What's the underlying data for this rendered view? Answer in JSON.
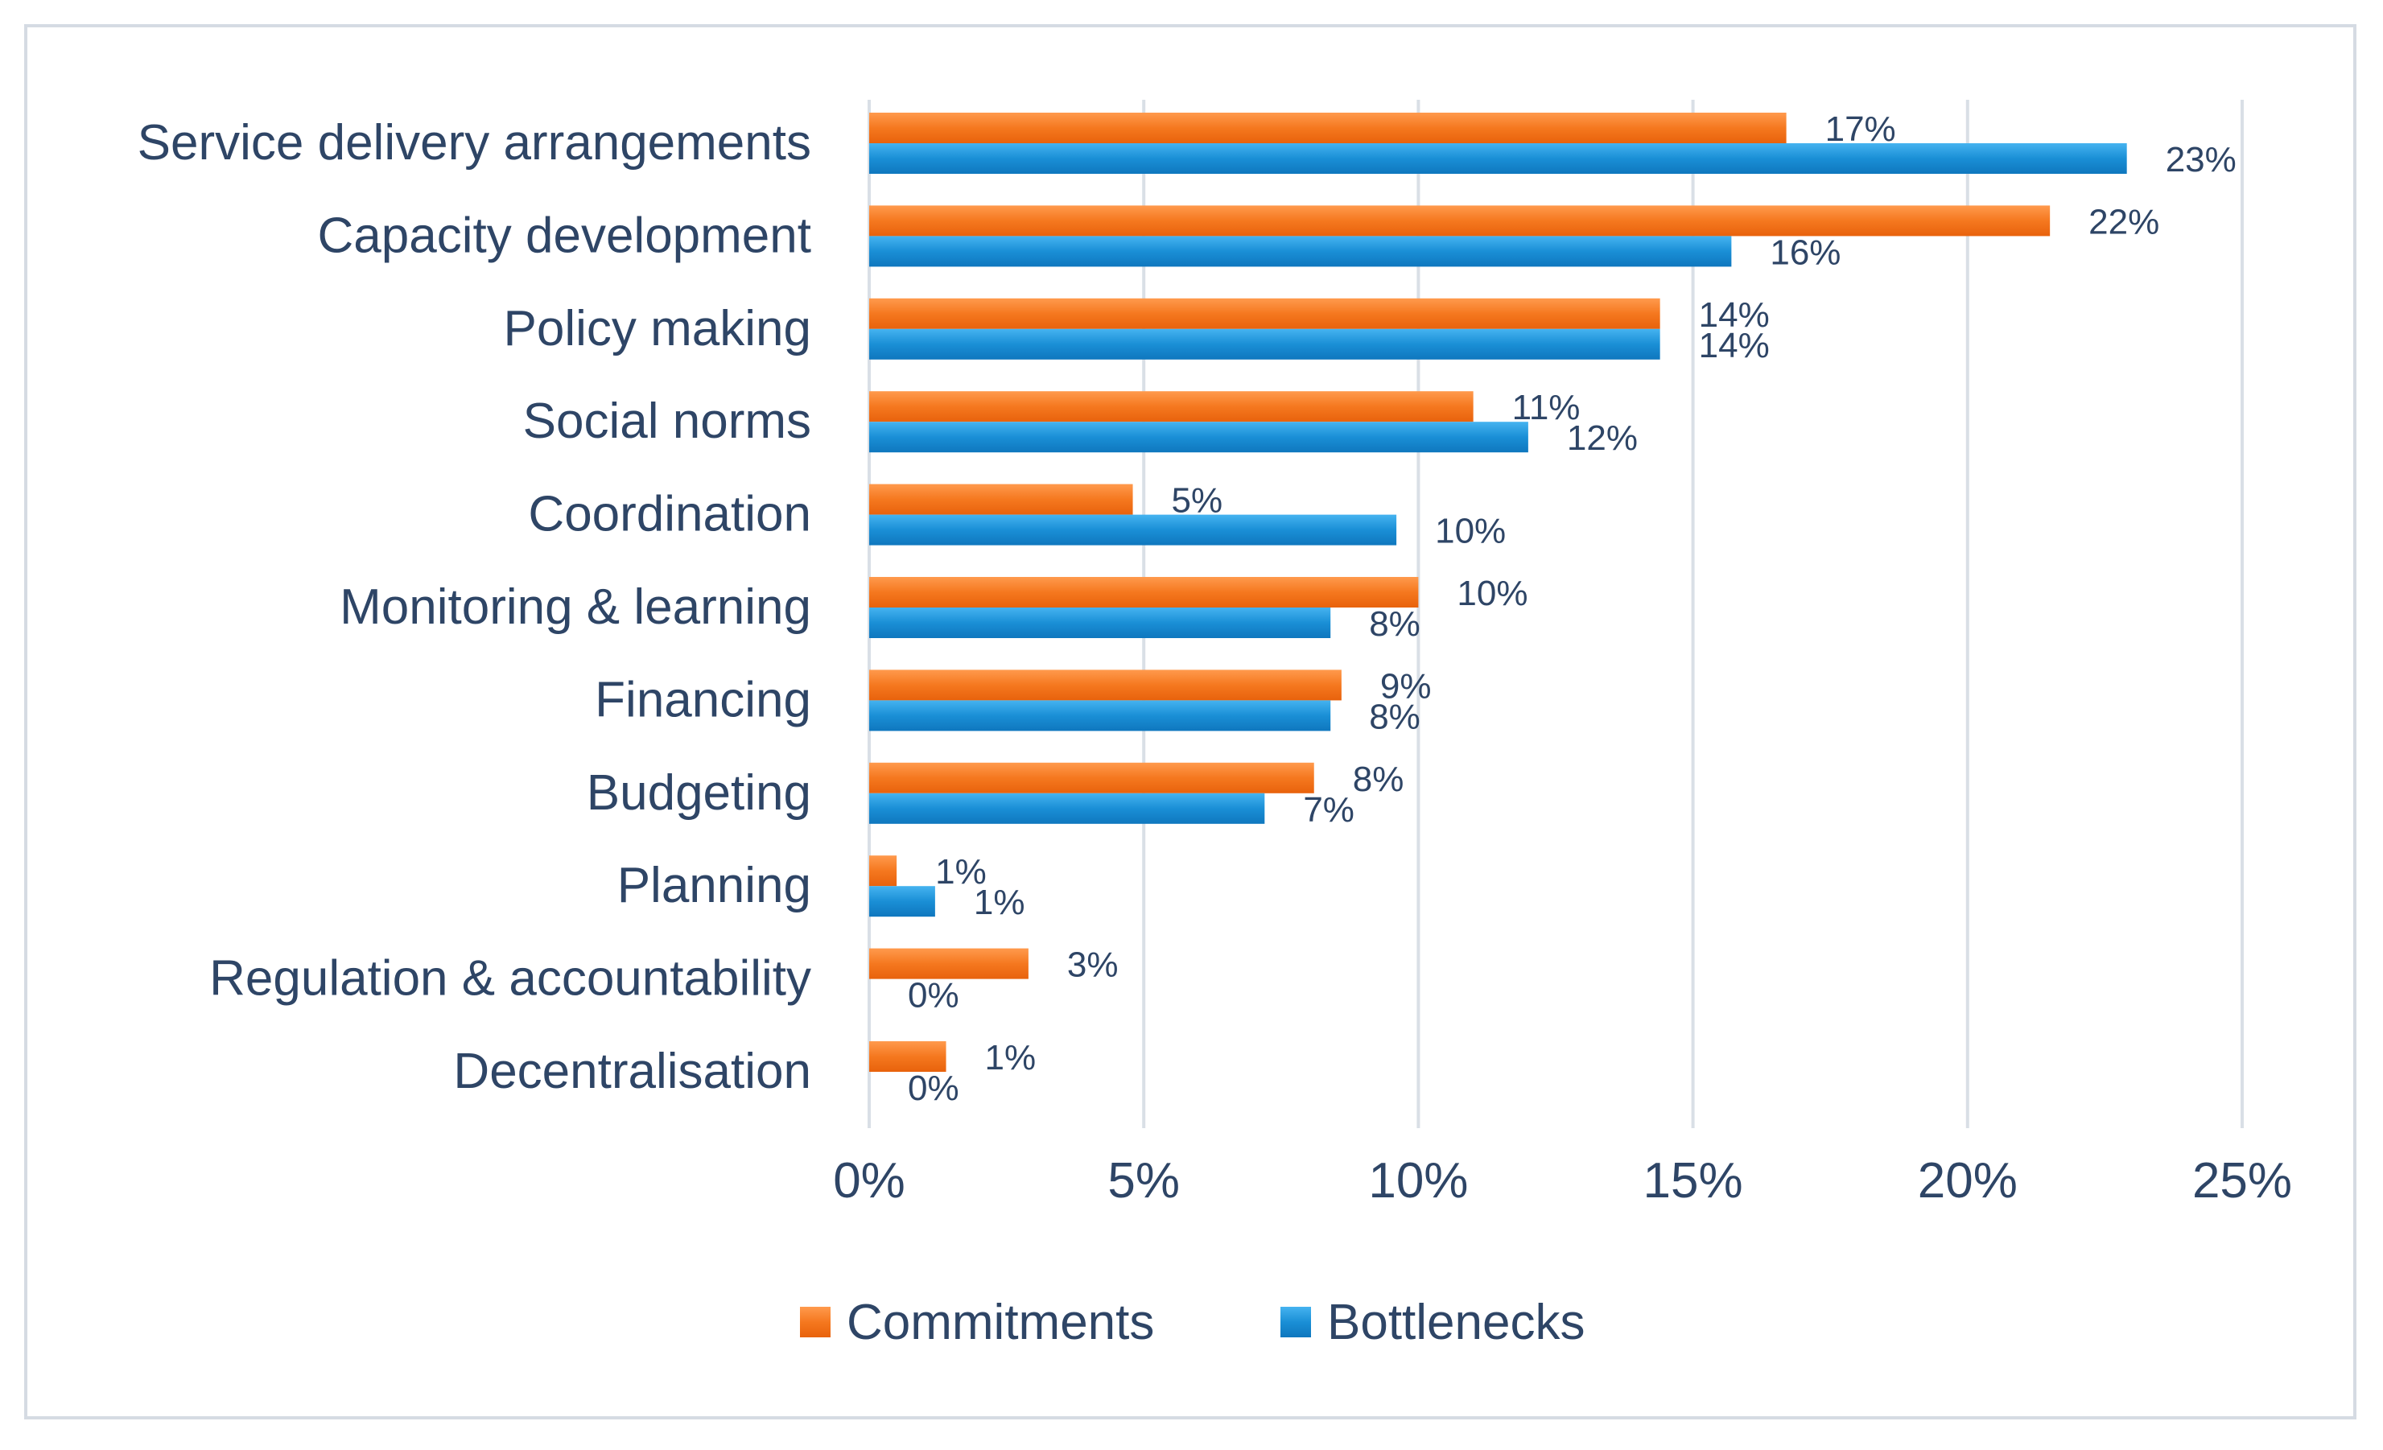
{
  "chart_data": {
    "type": "bar",
    "orientation": "horizontal",
    "title": "",
    "xlabel": "",
    "ylabel": "",
    "xlim": [
      0,
      25
    ],
    "x_ticks": [
      "0%",
      "5%",
      "10%",
      "15%",
      "20%",
      "25%"
    ],
    "grid": "vertical",
    "legend_position": "bottom",
    "categories": [
      "Service delivery arrangements",
      "Capacity development",
      "Policy making",
      "Social norms",
      "Coordination",
      "Monitoring & learning",
      "Financing",
      "Budgeting",
      "Planning",
      "Regulation & accountability",
      "Decentralisation"
    ],
    "series": [
      {
        "name": "Commitments",
        "color": "#f5781f",
        "values": [
          16.7,
          21.5,
          14.4,
          11.0,
          4.8,
          10.0,
          8.6,
          8.1,
          0.5,
          2.9,
          1.4
        ],
        "labels": [
          "17%",
          "22%",
          "14%",
          "11%",
          "5%",
          "10%",
          "9%",
          "8%",
          "1%",
          "3%",
          "1%"
        ]
      },
      {
        "name": "Bottlenecks",
        "color": "#1a8fd6",
        "values": [
          22.9,
          15.7,
          14.4,
          12.0,
          9.6,
          8.4,
          8.4,
          7.2,
          1.2,
          0.0,
          0.0
        ],
        "labels": [
          "23%",
          "16%",
          "14%",
          "12%",
          "10%",
          "8%",
          "8%",
          "7%",
          "1%",
          "0%",
          "0%"
        ]
      }
    ]
  }
}
